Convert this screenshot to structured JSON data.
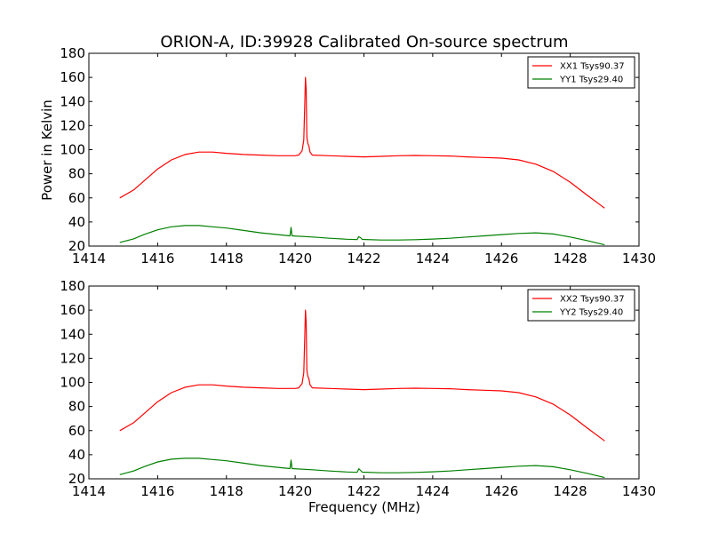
{
  "chart_data": [
    {
      "type": "line",
      "title": "ORION-A, ID:39928 Calibrated On-source spectrum",
      "xlabel": "",
      "ylabel": "Power in Kelvin",
      "xlim": [
        1414,
        1430
      ],
      "ylim": [
        20,
        180
      ],
      "xticks": [
        "1414",
        "1416",
        "1418",
        "1420",
        "1422",
        "1424",
        "1426",
        "1428",
        "1430"
      ],
      "yticks": [
        "20",
        "40",
        "60",
        "80",
        "100",
        "120",
        "140",
        "160",
        "180"
      ],
      "legend_position": "top-right",
      "series": [
        {
          "name": "XX1 Tsys90.37",
          "color": "#ff0000",
          "points": [
            [
              1414.9,
              60
            ],
            [
              1415.3,
              66.5
            ],
            [
              1415.6,
              74
            ],
            [
              1416.0,
              84
            ],
            [
              1416.4,
              91.5
            ],
            [
              1416.8,
              96
            ],
            [
              1417.2,
              98
            ],
            [
              1417.6,
              98
            ],
            [
              1418.0,
              97
            ],
            [
              1418.5,
              96
            ],
            [
              1419.0,
              95.5
            ],
            [
              1419.5,
              95
            ],
            [
              1420.0,
              95
            ],
            [
              1420.1,
              95.5
            ],
            [
              1420.2,
              99
            ],
            [
              1420.25,
              108
            ],
            [
              1420.28,
              140
            ],
            [
              1420.3,
              160
            ],
            [
              1420.32,
              150
            ],
            [
              1420.34,
              110
            ],
            [
              1420.37,
              105
            ],
            [
              1420.4,
              103
            ],
            [
              1420.43,
              98
            ],
            [
              1420.5,
              95.5
            ],
            [
              1421.0,
              95
            ],
            [
              1421.5,
              94.5
            ],
            [
              1422.0,
              94
            ],
            [
              1422.5,
              94.5
            ],
            [
              1423.0,
              95
            ],
            [
              1423.5,
              95.2
            ],
            [
              1424.0,
              95
            ],
            [
              1424.5,
              94.8
            ],
            [
              1425.0,
              94
            ],
            [
              1425.5,
              93.5
            ],
            [
              1426.0,
              93
            ],
            [
              1426.5,
              91.5
            ],
            [
              1427.0,
              88
            ],
            [
              1427.5,
              82
            ],
            [
              1428.0,
              73
            ],
            [
              1428.5,
              62
            ],
            [
              1429.0,
              51.5
            ]
          ]
        },
        {
          "name": "YY1 Tsys29.40",
          "color": "#008000",
          "points": [
            [
              1414.9,
              23
            ],
            [
              1415.3,
              26
            ],
            [
              1415.6,
              29.5
            ],
            [
              1416.0,
              33.5
            ],
            [
              1416.4,
              36
            ],
            [
              1416.8,
              37
            ],
            [
              1417.2,
              37
            ],
            [
              1417.6,
              36
            ],
            [
              1418.0,
              35
            ],
            [
              1418.5,
              33
            ],
            [
              1419.0,
              31
            ],
            [
              1419.5,
              29.5
            ],
            [
              1419.85,
              28.5
            ],
            [
              1419.88,
              35.5
            ],
            [
              1419.91,
              28.5
            ],
            [
              1420.5,
              27.5
            ],
            [
              1421.0,
              26.5
            ],
            [
              1421.5,
              25.7
            ],
            [
              1421.8,
              25.4
            ],
            [
              1421.85,
              27.8
            ],
            [
              1421.9,
              27
            ],
            [
              1421.95,
              25.5
            ],
            [
              1422.5,
              25
            ],
            [
              1423.0,
              25
            ],
            [
              1423.5,
              25.3
            ],
            [
              1424.0,
              25.8
            ],
            [
              1424.5,
              26.5
            ],
            [
              1425.0,
              27.5
            ],
            [
              1425.5,
              28.5
            ],
            [
              1426.0,
              29.5
            ],
            [
              1426.5,
              30.5
            ],
            [
              1427.0,
              31
            ],
            [
              1427.5,
              30
            ],
            [
              1428.0,
              27.5
            ],
            [
              1428.5,
              24.5
            ],
            [
              1429.0,
              21
            ]
          ]
        }
      ]
    },
    {
      "type": "line",
      "title": "",
      "xlabel": "Frequency (MHz)",
      "ylabel": "",
      "xlim": [
        1414,
        1430
      ],
      "ylim": [
        20,
        180
      ],
      "xticks": [
        "1414",
        "1416",
        "1418",
        "1420",
        "1422",
        "1424",
        "1426",
        "1428",
        "1430"
      ],
      "yticks": [
        "20",
        "40",
        "60",
        "80",
        "100",
        "120",
        "140",
        "160",
        "180"
      ],
      "legend_position": "top-right",
      "series": [
        {
          "name": "XX2 Tsys90.37",
          "color": "#ff0000",
          "points": [
            [
              1414.9,
              60
            ],
            [
              1415.3,
              66.5
            ],
            [
              1415.6,
              74
            ],
            [
              1416.0,
              84
            ],
            [
              1416.4,
              91.5
            ],
            [
              1416.8,
              96
            ],
            [
              1417.2,
              98
            ],
            [
              1417.6,
              98
            ],
            [
              1418.0,
              97
            ],
            [
              1418.5,
              96
            ],
            [
              1419.0,
              95.5
            ],
            [
              1419.5,
              95
            ],
            [
              1420.0,
              95
            ],
            [
              1420.1,
              95.5
            ],
            [
              1420.2,
              99
            ],
            [
              1420.25,
              108
            ],
            [
              1420.28,
              140
            ],
            [
              1420.3,
              160
            ],
            [
              1420.32,
              150
            ],
            [
              1420.34,
              110
            ],
            [
              1420.37,
              105
            ],
            [
              1420.4,
              103
            ],
            [
              1420.43,
              98
            ],
            [
              1420.5,
              95.5
            ],
            [
              1421.0,
              95
            ],
            [
              1421.5,
              94.5
            ],
            [
              1422.0,
              94
            ],
            [
              1422.5,
              94.5
            ],
            [
              1423.0,
              95
            ],
            [
              1423.5,
              95.2
            ],
            [
              1424.0,
              95
            ],
            [
              1424.5,
              94.8
            ],
            [
              1425.0,
              94
            ],
            [
              1425.5,
              93.5
            ],
            [
              1426.0,
              93
            ],
            [
              1426.5,
              91.5
            ],
            [
              1427.0,
              88
            ],
            [
              1427.5,
              82
            ],
            [
              1428.0,
              73
            ],
            [
              1428.5,
              62
            ],
            [
              1429.0,
              51.5
            ]
          ]
        },
        {
          "name": "YY2 Tsys29.40",
          "color": "#008000",
          "points": [
            [
              1414.9,
              23.5
            ],
            [
              1415.3,
              26.5
            ],
            [
              1415.6,
              30
            ],
            [
              1416.0,
              34
            ],
            [
              1416.4,
              36.3
            ],
            [
              1416.8,
              37
            ],
            [
              1417.2,
              37
            ],
            [
              1417.6,
              36
            ],
            [
              1418.0,
              35
            ],
            [
              1418.5,
              33
            ],
            [
              1419.0,
              31
            ],
            [
              1419.5,
              29.5
            ],
            [
              1419.85,
              28.5
            ],
            [
              1419.88,
              35.5
            ],
            [
              1419.91,
              28.5
            ],
            [
              1420.5,
              27.5
            ],
            [
              1421.0,
              26.5
            ],
            [
              1421.5,
              25.7
            ],
            [
              1421.8,
              25.4
            ],
            [
              1421.85,
              28.3
            ],
            [
              1421.9,
              27
            ],
            [
              1421.95,
              25.5
            ],
            [
              1422.5,
              25
            ],
            [
              1423.0,
              25
            ],
            [
              1423.5,
              25.3
            ],
            [
              1424.0,
              25.8
            ],
            [
              1424.5,
              26.5
            ],
            [
              1425.0,
              27.5
            ],
            [
              1425.5,
              28.5
            ],
            [
              1426.0,
              29.5
            ],
            [
              1426.5,
              30.5
            ],
            [
              1427.0,
              31
            ],
            [
              1427.5,
              30
            ],
            [
              1428.0,
              27.5
            ],
            [
              1428.5,
              24.5
            ],
            [
              1429.0,
              21
            ]
          ]
        }
      ]
    }
  ]
}
